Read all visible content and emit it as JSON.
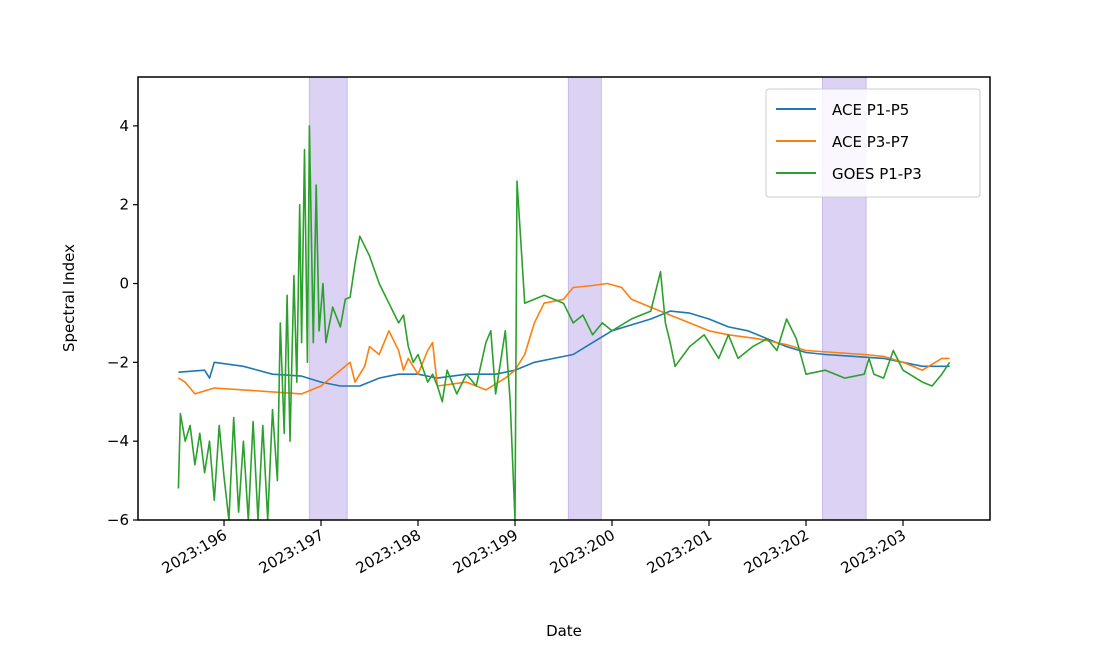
{
  "chart_data": {
    "type": "line",
    "xlabel": "Date",
    "ylabel": "Spectral Index",
    "xlim": [
      195.113,
      203.897
    ],
    "ylim": [
      -6,
      5.24
    ],
    "xticks": [
      {
        "value": 196,
        "label": "2023:196"
      },
      {
        "value": 197,
        "label": "2023:197"
      },
      {
        "value": 198,
        "label": "2023:198"
      },
      {
        "value": 199,
        "label": "2023:199"
      },
      {
        "value": 200,
        "label": "2023:200"
      },
      {
        "value": 201,
        "label": "2023:201"
      },
      {
        "value": 202,
        "label": "2023:202"
      },
      {
        "value": 203,
        "label": "2023:203"
      }
    ],
    "yticks": [
      {
        "value": -6,
        "label": "−6"
      },
      {
        "value": -4,
        "label": "−4"
      },
      {
        "value": -2,
        "label": "−2"
      },
      0,
      2,
      4
    ],
    "legend": "upper right",
    "shaded_regions": [
      [
        196.88,
        197.27
      ],
      [
        199.55,
        199.89
      ],
      [
        202.17,
        202.62
      ]
    ],
    "shade_color": "#b9a6e8",
    "series": [
      {
        "name": "ACE P1-P5",
        "color": "#1f77b4",
        "x": [
          195.53,
          195.8,
          195.85,
          195.9,
          196.2,
          196.5,
          196.8,
          197.0,
          197.2,
          197.4,
          197.6,
          197.8,
          198.0,
          198.2,
          198.5,
          198.8,
          199.0,
          199.2,
          199.4,
          199.6,
          199.8,
          200.0,
          200.2,
          200.4,
          200.6,
          200.8,
          201.0,
          201.2,
          201.4,
          201.6,
          201.8,
          202.0,
          202.2,
          202.5,
          202.8,
          203.0,
          203.2,
          203.48
        ],
        "values": [
          -2.25,
          -2.2,
          -2.4,
          -2.0,
          -2.1,
          -2.3,
          -2.35,
          -2.5,
          -2.6,
          -2.6,
          -2.4,
          -2.3,
          -2.3,
          -2.4,
          -2.3,
          -2.3,
          -2.2,
          -2.0,
          -1.9,
          -1.8,
          -1.5,
          -1.2,
          -1.05,
          -0.9,
          -0.7,
          -0.75,
          -0.9,
          -1.1,
          -1.2,
          -1.4,
          -1.6,
          -1.75,
          -1.8,
          -1.85,
          -1.9,
          -2.0,
          -2.1,
          -2.1
        ]
      },
      {
        "name": "ACE P3-P7",
        "color": "#ff7f0e",
        "x": [
          195.53,
          195.6,
          195.7,
          195.9,
          196.2,
          196.5,
          196.8,
          197.0,
          197.1,
          197.2,
          197.3,
          197.35,
          197.45,
          197.5,
          197.6,
          197.7,
          197.8,
          197.85,
          197.9,
          198.0,
          198.1,
          198.15,
          198.2,
          198.5,
          198.7,
          198.9,
          199.0,
          199.1,
          199.2,
          199.3,
          199.5,
          199.6,
          199.8,
          199.95,
          200.1,
          200.2,
          200.4,
          200.6,
          200.8,
          201.0,
          201.2,
          201.5,
          201.8,
          202.0,
          202.3,
          202.6,
          202.8,
          203.0,
          203.2,
          203.4,
          203.48
        ],
        "values": [
          -2.4,
          -2.5,
          -2.8,
          -2.65,
          -2.7,
          -2.75,
          -2.8,
          -2.6,
          -2.4,
          -2.2,
          -2.0,
          -2.5,
          -2.1,
          -1.6,
          -1.8,
          -1.2,
          -1.7,
          -2.2,
          -1.9,
          -2.3,
          -1.7,
          -1.5,
          -2.6,
          -2.5,
          -2.7,
          -2.4,
          -2.2,
          -1.8,
          -1.0,
          -0.5,
          -0.4,
          -0.1,
          -0.05,
          0.0,
          -0.1,
          -0.4,
          -0.6,
          -0.8,
          -1.0,
          -1.2,
          -1.3,
          -1.4,
          -1.55,
          -1.7,
          -1.75,
          -1.8,
          -1.85,
          -2.0,
          -2.2,
          -1.9,
          -1.9
        ]
      },
      {
        "name": "GOES P1-P3",
        "color": "#2ca02c",
        "x": [
          195.53,
          195.55,
          195.6,
          195.65,
          195.7,
          195.75,
          195.8,
          195.85,
          195.9,
          195.95,
          196.0,
          196.05,
          196.1,
          196.15,
          196.2,
          196.25,
          196.3,
          196.35,
          196.4,
          196.45,
          196.5,
          196.55,
          196.58,
          196.62,
          196.65,
          196.68,
          196.72,
          196.75,
          196.78,
          196.8,
          196.83,
          196.86,
          196.88,
          196.92,
          196.95,
          196.98,
          197.02,
          197.05,
          197.12,
          197.2,
          197.25,
          197.3,
          197.35,
          197.4,
          197.5,
          197.6,
          197.7,
          197.8,
          197.85,
          197.9,
          197.95,
          198.0,
          198.1,
          198.15,
          198.2,
          198.25,
          198.3,
          198.4,
          198.5,
          198.6,
          198.7,
          198.75,
          198.8,
          198.85,
          198.9,
          198.95,
          199.0,
          199.02,
          199.1,
          199.3,
          199.5,
          199.6,
          199.7,
          199.8,
          199.9,
          200.0,
          200.2,
          200.4,
          200.5,
          200.55,
          200.6,
          200.65,
          200.8,
          200.95,
          201.1,
          201.2,
          201.3,
          201.45,
          201.6,
          201.7,
          201.8,
          201.9,
          202.0,
          202.2,
          202.4,
          202.6,
          202.65,
          202.7,
          202.8,
          202.9,
          203.0,
          203.2,
          203.3,
          203.4,
          203.48
        ],
        "values": [
          -5.2,
          -3.3,
          -4.0,
          -3.6,
          -4.6,
          -3.8,
          -4.8,
          -4.0,
          -5.5,
          -3.6,
          -4.9,
          -6.0,
          -3.4,
          -5.8,
          -4.0,
          -6.0,
          -3.5,
          -6.0,
          -3.6,
          -6.0,
          -3.2,
          -5.0,
          -1.0,
          -3.8,
          -0.3,
          -4.0,
          0.2,
          -2.5,
          2.0,
          -1.5,
          3.4,
          -2.0,
          4.0,
          -1.5,
          2.5,
          -1.2,
          0.0,
          -1.5,
          -0.6,
          -1.1,
          -0.4,
          -0.35,
          0.5,
          1.2,
          0.7,
          0.0,
          -0.5,
          -1.0,
          -0.8,
          -1.6,
          -2.0,
          -1.8,
          -2.5,
          -2.3,
          -2.6,
          -3.0,
          -2.2,
          -2.8,
          -2.3,
          -2.6,
          -1.5,
          -1.2,
          -2.8,
          -2.0,
          -1.2,
          -3.0,
          -6.0,
          2.6,
          -0.5,
          -0.3,
          -0.5,
          -1.0,
          -0.8,
          -1.3,
          -1.0,
          -1.2,
          -0.9,
          -0.7,
          0.3,
          -1.0,
          -1.5,
          -2.1,
          -1.6,
          -1.3,
          -1.9,
          -1.3,
          -1.9,
          -1.6,
          -1.4,
          -1.7,
          -0.9,
          -1.4,
          -2.3,
          -2.2,
          -2.4,
          -2.3,
          -1.9,
          -2.3,
          -2.4,
          -1.7,
          -2.2,
          -2.5,
          -2.6,
          -2.3,
          -2.0
        ]
      }
    ]
  }
}
